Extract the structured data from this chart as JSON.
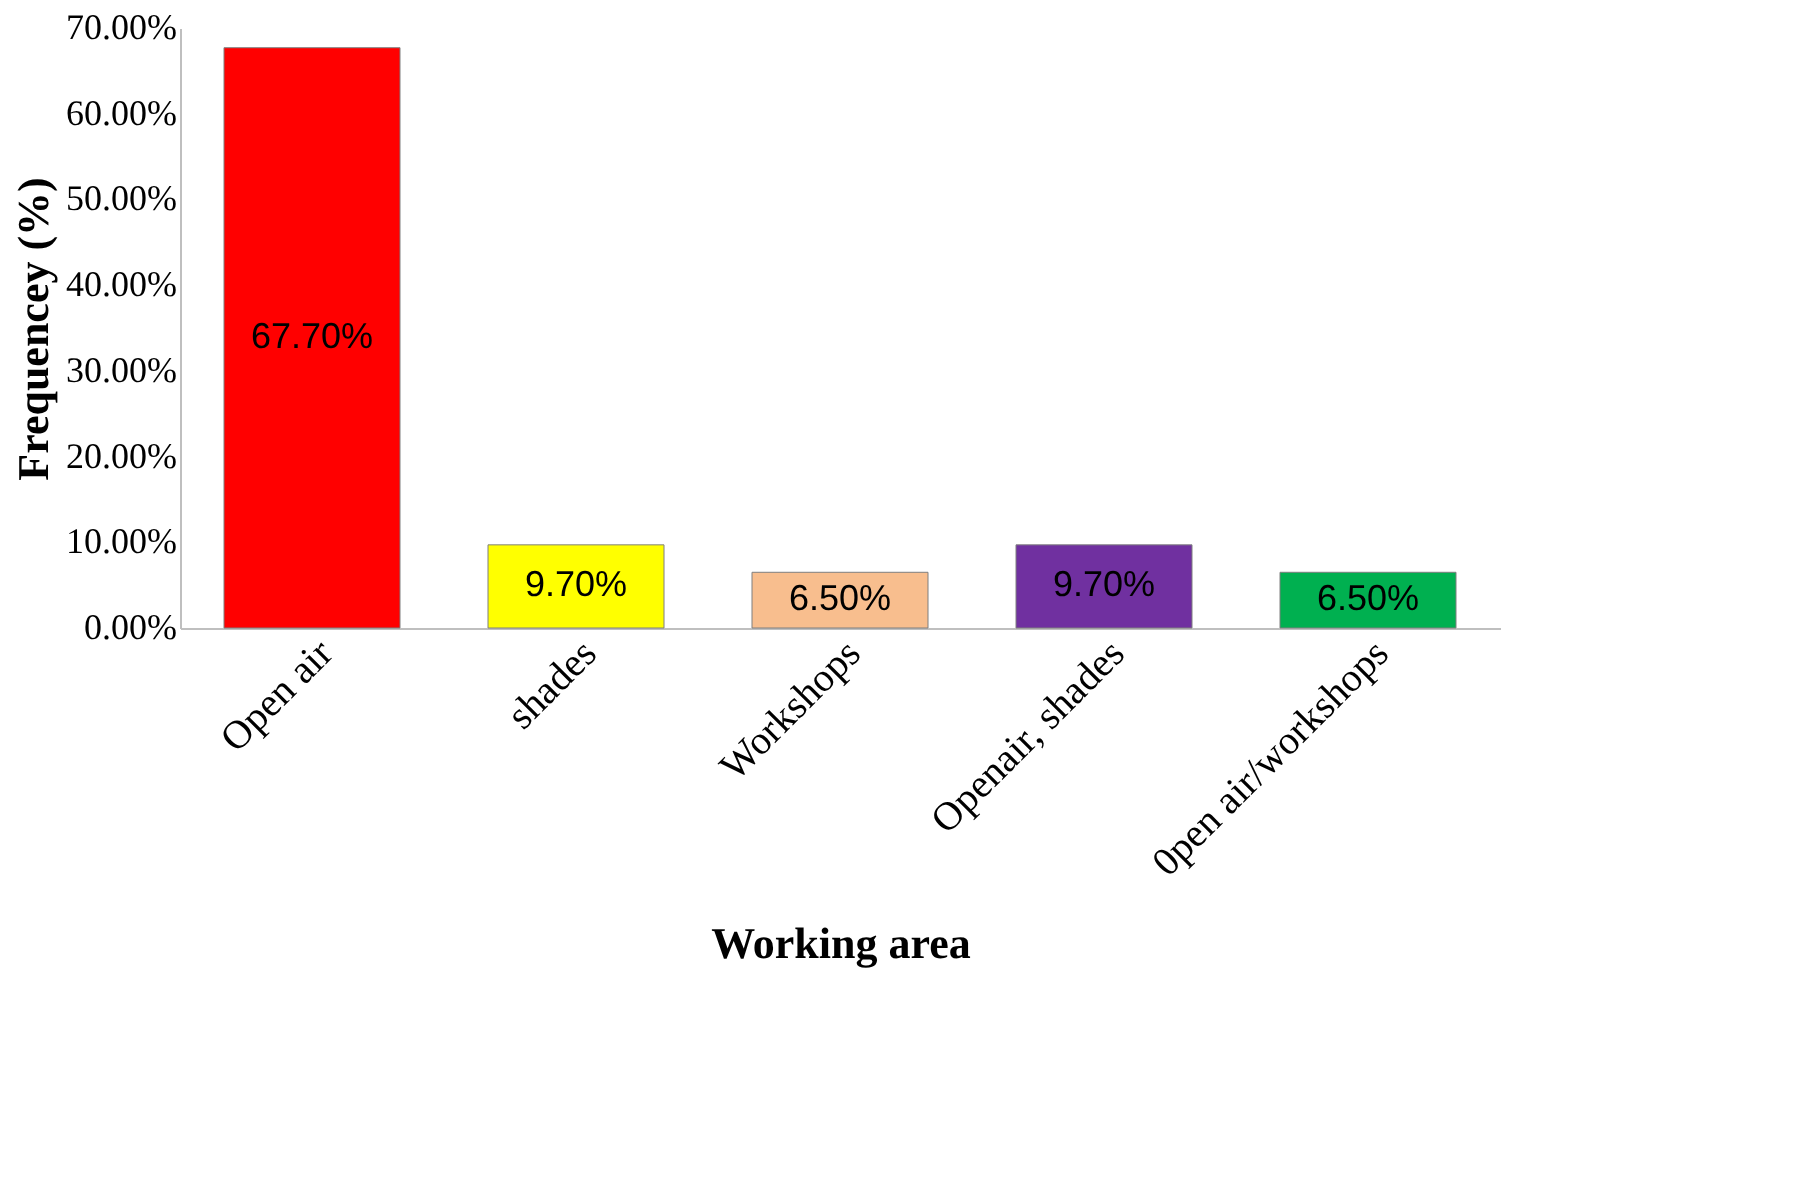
{
  "chart_data": {
    "type": "bar",
    "xlabel": "Working area",
    "ylabel": "Frequencey (%)",
    "categories": [
      "Open air",
      "shades",
      "Workshops",
      "Openair, shades",
      "0pen air/workshops"
    ],
    "values": [
      67.7,
      9.7,
      6.5,
      9.7,
      6.5
    ],
    "colors": [
      "#ff0000",
      "#ffff00",
      "#f8be8e",
      "#7030a0",
      "#00b050"
    ],
    "value_labels": [
      "67.70%",
      "9.70%",
      "6.50%",
      "9.70%",
      "6.50%"
    ],
    "ylim": [
      0,
      70
    ],
    "yticks": [
      {
        "value": 0,
        "label": "0.00%"
      },
      {
        "value": 10,
        "label": "10.00%"
      },
      {
        "value": 20,
        "label": "20.00%"
      },
      {
        "value": 30,
        "label": "30.00%"
      },
      {
        "value": 40,
        "label": "40.00%"
      },
      {
        "value": 50,
        "label": "50.00%"
      },
      {
        "value": 60,
        "label": "60.00%"
      },
      {
        "value": 70,
        "label": "70.00%"
      }
    ],
    "grid": false
  }
}
